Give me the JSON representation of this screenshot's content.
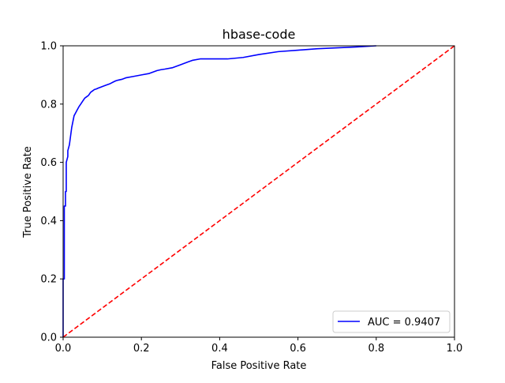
{
  "chart_data": {
    "type": "line",
    "title": "hbase-code",
    "xlabel": "False Positive Rate",
    "ylabel": "True Positive Rate",
    "xlim": [
      0.0,
      1.0
    ],
    "ylim": [
      0.0,
      1.0
    ],
    "x_ticks": [
      "0.0",
      "0.2",
      "0.4",
      "0.6",
      "0.8",
      "1.0"
    ],
    "y_ticks": [
      "0.0",
      "0.2",
      "0.4",
      "0.6",
      "0.8",
      "1.0"
    ],
    "grid": false,
    "legend_position": "lower-right",
    "series": [
      {
        "name": "AUC = 0.9407",
        "color": "#0000ff",
        "style": "solid",
        "x": [
          0.0,
          0.0,
          0.003,
          0.003,
          0.006,
          0.006,
          0.008,
          0.008,
          0.012,
          0.012,
          0.016,
          0.018,
          0.02,
          0.022,
          0.025,
          0.028,
          0.032,
          0.036,
          0.04,
          0.045,
          0.05,
          0.055,
          0.06,
          0.065,
          0.07,
          0.075,
          0.08,
          0.085,
          0.09,
          0.1,
          0.11,
          0.12,
          0.13,
          0.135,
          0.14,
          0.15,
          0.16,
          0.18,
          0.2,
          0.22,
          0.24,
          0.25,
          0.26,
          0.28,
          0.3,
          0.32,
          0.33,
          0.35,
          0.38,
          0.42,
          0.46,
          0.5,
          0.55,
          0.6,
          0.65,
          0.7,
          0.75,
          0.8
        ],
        "y": [
          0.0,
          0.2,
          0.2,
          0.45,
          0.45,
          0.5,
          0.5,
          0.6,
          0.62,
          0.64,
          0.66,
          0.68,
          0.7,
          0.72,
          0.74,
          0.76,
          0.77,
          0.78,
          0.79,
          0.8,
          0.81,
          0.82,
          0.825,
          0.83,
          0.84,
          0.845,
          0.85,
          0.852,
          0.855,
          0.86,
          0.865,
          0.87,
          0.877,
          0.88,
          0.882,
          0.885,
          0.89,
          0.895,
          0.9,
          0.905,
          0.915,
          0.918,
          0.92,
          0.925,
          0.935,
          0.945,
          0.95,
          0.955,
          0.955,
          0.955,
          0.96,
          0.97,
          0.98,
          0.985,
          0.99,
          0.993,
          0.996,
          1.0
        ]
      },
      {
        "name": "",
        "color": "#ff0000",
        "style": "dashed",
        "x": [
          0.0,
          1.0
        ],
        "y": [
          0.0,
          1.0
        ]
      }
    ],
    "legend": [
      {
        "label": "AUC = 0.9407",
        "color": "#0000ff"
      }
    ]
  }
}
